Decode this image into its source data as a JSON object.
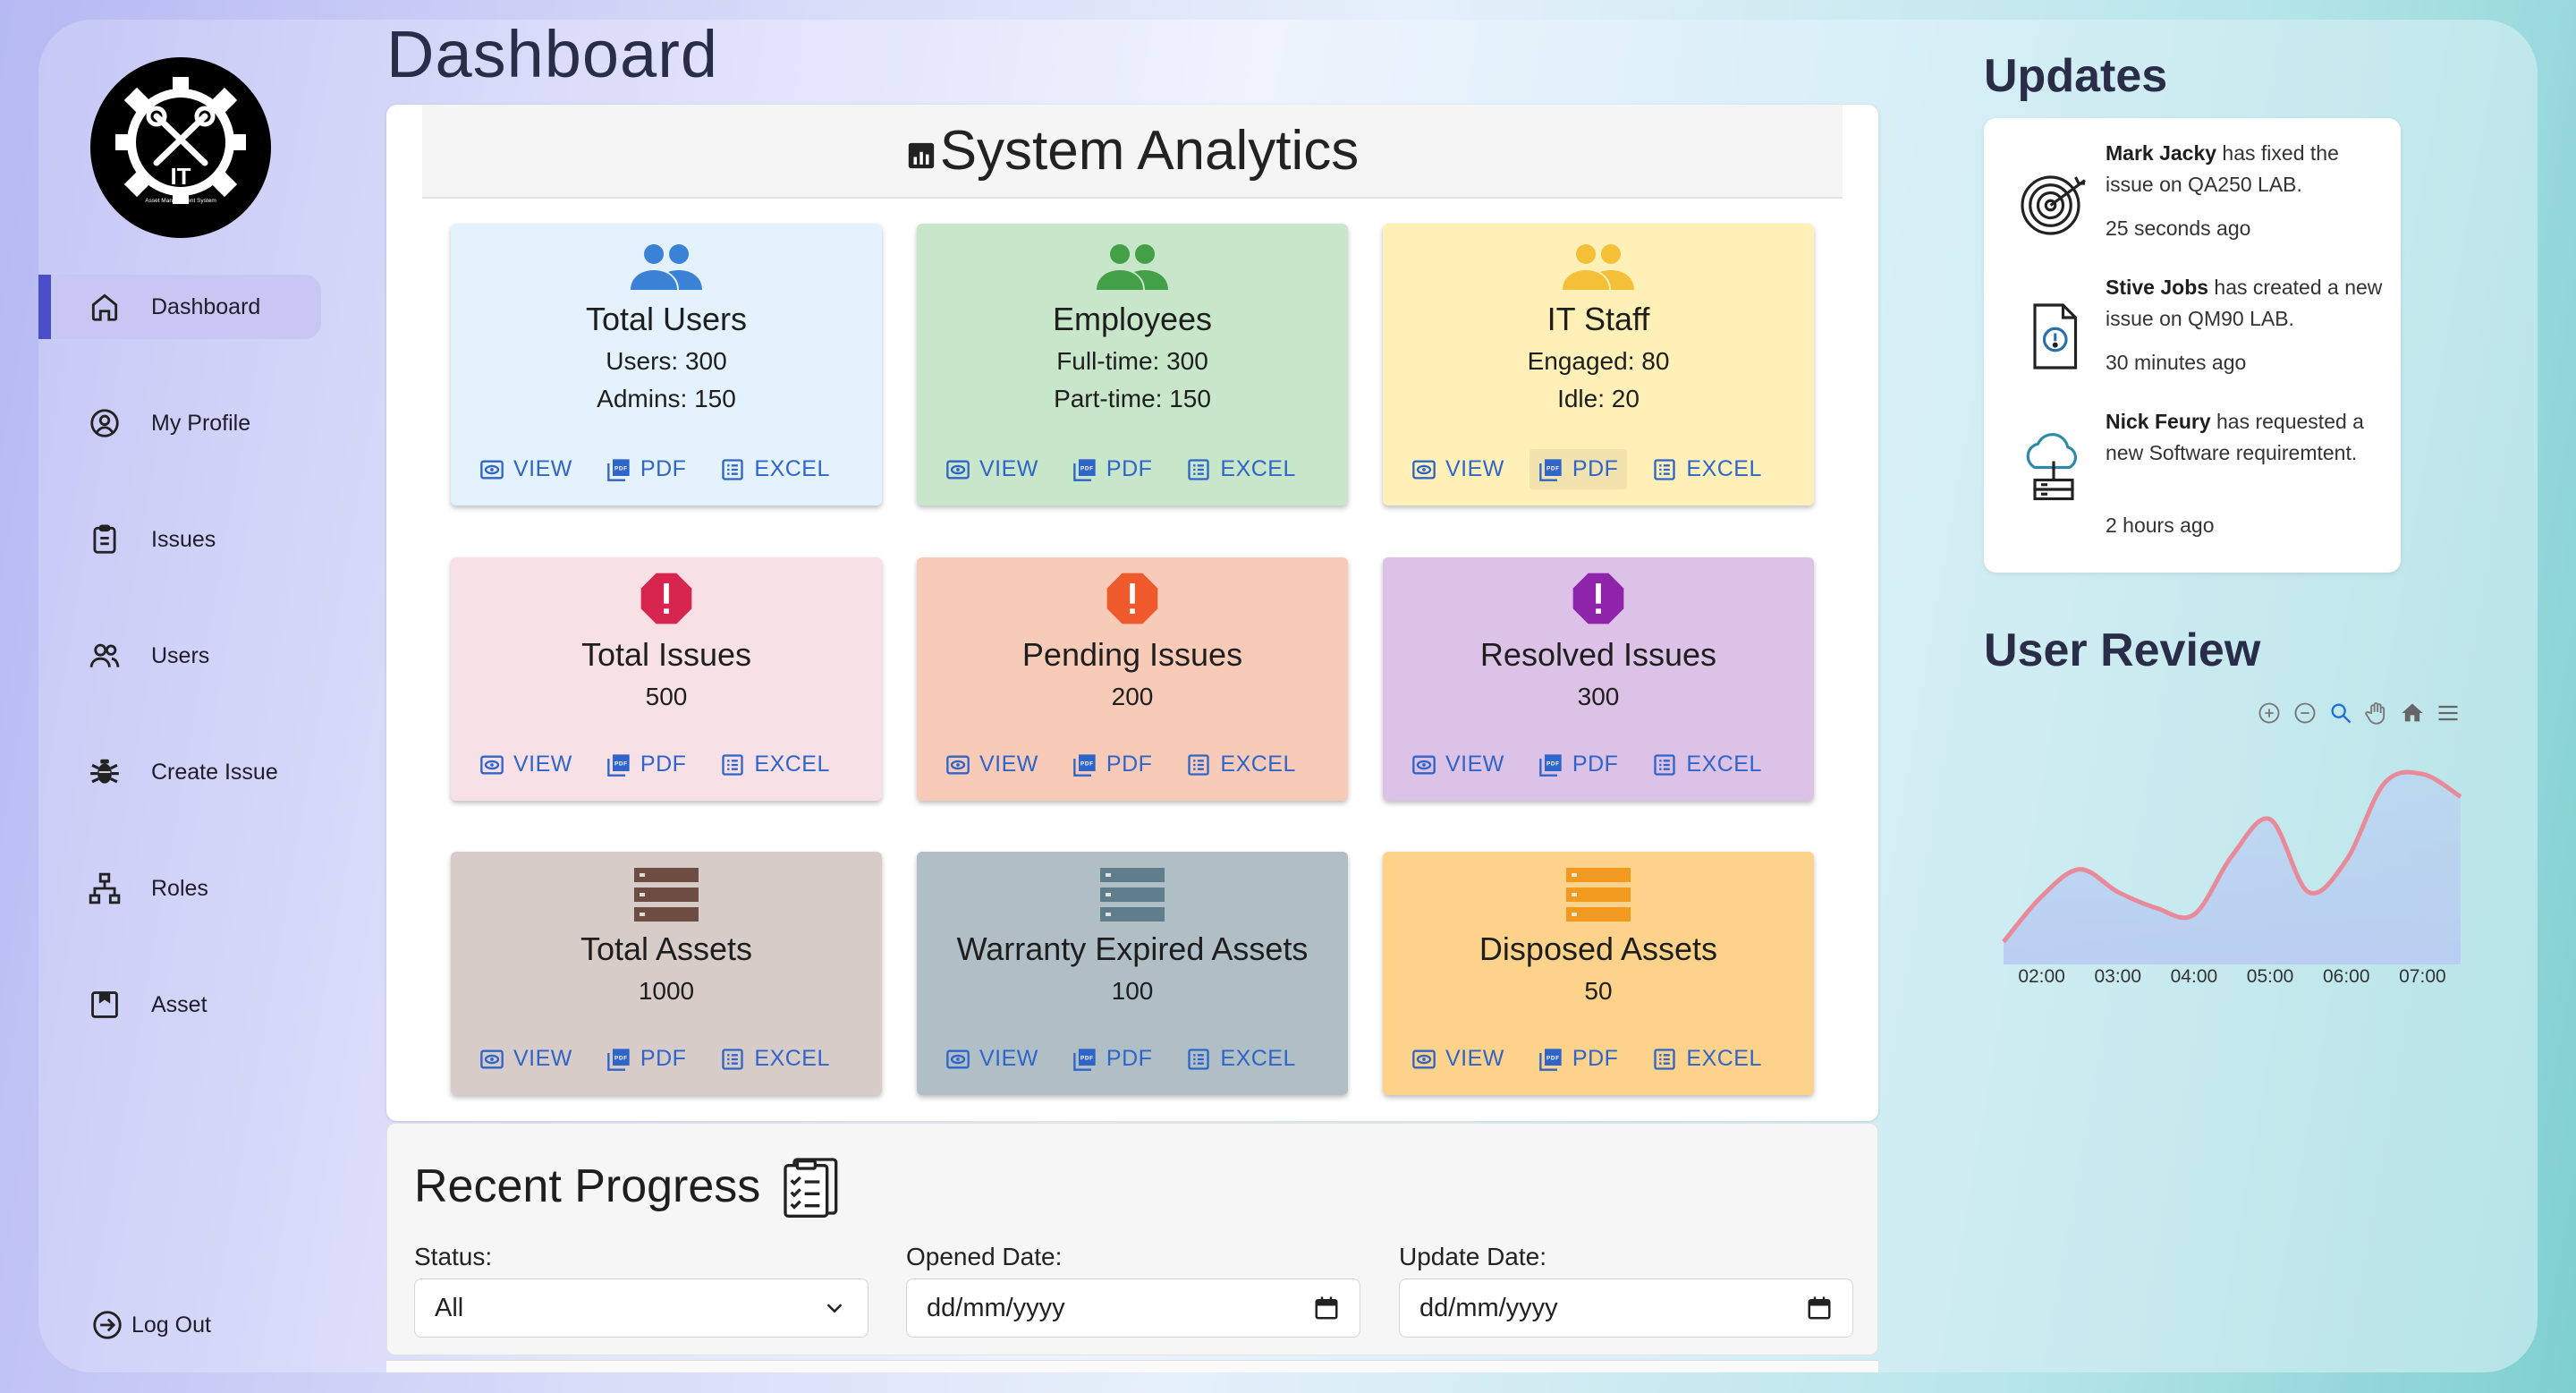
{
  "sidebar": {
    "logo": {
      "text": "IT",
      "subtitle": "Asset Management System"
    },
    "items": [
      {
        "label": "Dashboard",
        "icon": "home-icon",
        "active": true
      },
      {
        "label": "My Profile",
        "icon": "user-circle-icon"
      },
      {
        "label": "Issues",
        "icon": "clipboard-icon"
      },
      {
        "label": "Users",
        "icon": "users-icon"
      },
      {
        "label": "Create Issue",
        "icon": "bug-icon"
      },
      {
        "label": "Roles",
        "icon": "hierarchy-icon"
      },
      {
        "label": "Asset",
        "icon": "box-icon"
      }
    ],
    "logout_label": "Log Out"
  },
  "header": {
    "title": "Dashboard"
  },
  "analytics": {
    "title": "System Analytics",
    "actions": {
      "view": "VIEW",
      "pdf": "PDF",
      "excel": "EXCEL"
    },
    "cards": [
      {
        "title": "Total Users",
        "lines": [
          "Users: 300",
          "Admins: 150"
        ],
        "bg": "#e3f2fd",
        "icon_color": "#3b82d6",
        "icon": "users-icon"
      },
      {
        "title": "Employees",
        "lines": [
          "Full-time: 300",
          "Part-time: 150"
        ],
        "bg": "#c8e6c9",
        "icon_color": "#43a047",
        "icon": "users-icon"
      },
      {
        "title": "IT Staff",
        "lines": [
          "Engaged: 80",
          "Idle: 20"
        ],
        "bg": "#fff0b8",
        "icon_color": "#f5c038",
        "icon": "users-icon"
      },
      {
        "title": "Total Issues",
        "lines": [
          "500"
        ],
        "bg": "#f8e0e7",
        "icon_color": "#d6264f",
        "icon": "alert-octagon-icon"
      },
      {
        "title": "Pending Issues",
        "lines": [
          "200"
        ],
        "bg": "#f8cbb8",
        "icon_color": "#ee5a2c",
        "icon": "alert-octagon-icon"
      },
      {
        "title": "Resolved Issues",
        "lines": [
          "300"
        ],
        "bg": "#dcc2e6",
        "icon_color": "#8e24aa",
        "icon": "alert-octagon-icon"
      },
      {
        "title": "Total Assets",
        "lines": [
          "1000"
        ],
        "bg": "#d7ccc8",
        "icon_color": "#6d4c41",
        "icon": "storage-icon"
      },
      {
        "title": "Warranty Expired Assets",
        "lines": [
          "100"
        ],
        "bg": "#b0bec5",
        "icon_color": "#607d8b",
        "icon": "storage-icon"
      },
      {
        "title": "Disposed Assets",
        "lines": [
          "50"
        ],
        "bg": "#fdd28a",
        "icon_color": "#f29a1f",
        "icon": "storage-icon"
      }
    ]
  },
  "progress": {
    "title": "Recent Progress",
    "status_label": "Status:",
    "status_value": "All",
    "opened_label": "Opened Date:",
    "opened_placeholder": "dd/mm/yyyy",
    "update_label": "Update Date:",
    "update_placeholder": "dd/mm/yyyy"
  },
  "updates": {
    "title": "Updates",
    "items": [
      {
        "name": "Mark Jacky",
        "text": " has fixed the issue on QA250 LAB.",
        "time": "25 seconds ago",
        "icon": "target-icon"
      },
      {
        "name": "Stive Jobs",
        "text": " has created a new issue on QM90 LAB.",
        "time": "30 minutes ago",
        "icon": "document-alert-icon"
      },
      {
        "name": "Nick Feury",
        "text": " has requested a new Software requiremtent.",
        "time": "2 hours ago",
        "icon": "cloud-server-icon"
      }
    ]
  },
  "review": {
    "title": "User Review",
    "chart_data": {
      "type": "area",
      "x": [
        "01:30",
        "02:00",
        "02:30",
        "03:00",
        "03:30",
        "04:00",
        "04:30",
        "05:00",
        "05:30",
        "06:00",
        "06:30",
        "07:00",
        "07:30"
      ],
      "values": [
        10,
        30,
        42,
        32,
        25,
        22,
        48,
        64,
        32,
        46,
        80,
        84,
        74
      ],
      "tick_labels": [
        "02:00",
        "03:00",
        "04:00",
        "05:00",
        "06:00",
        "07:00"
      ],
      "line_color": "#e98a9a",
      "fill_color": "#b9cdf2",
      "grid": false,
      "legend": "none"
    }
  }
}
